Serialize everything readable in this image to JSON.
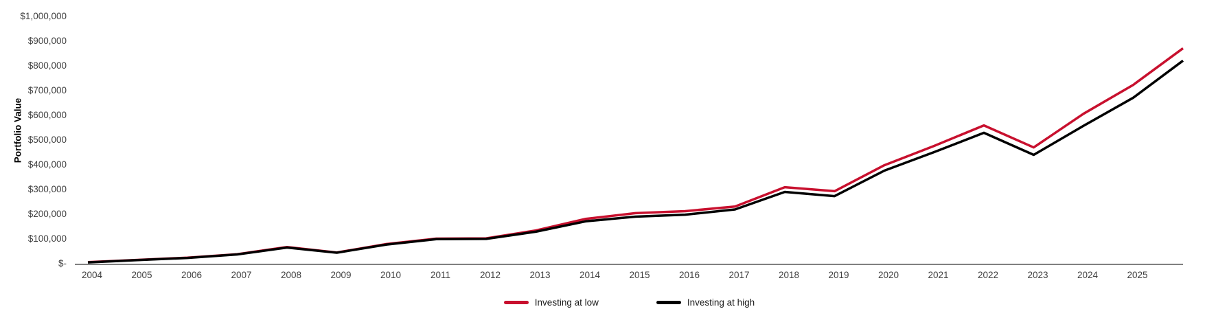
{
  "chart_data": {
    "type": "line",
    "title": "",
    "xlabel": "",
    "ylabel": "Portfolio Value",
    "ylim": [
      0,
      1000000
    ],
    "grid": false,
    "legend_position": "bottom",
    "axis_line_color": "#808080",
    "tick_text_color": "#404040",
    "x": [
      2004,
      2005,
      2006,
      2007,
      2008,
      2009,
      2010,
      2011,
      2012,
      2013,
      2014,
      2015,
      2016,
      2017,
      2018,
      2019,
      2020,
      2021,
      2022,
      2023,
      2024,
      2025,
      2026
    ],
    "x_tick_labels": [
      "2004",
      "2005",
      "2006",
      "2007",
      "2008",
      "2009",
      "2010",
      "2011",
      "2012",
      "2013",
      "2014",
      "2015",
      "2016",
      "2017",
      "2018",
      "2019",
      "2020",
      "2021",
      "2022",
      "2023",
      "2024",
      "2025"
    ],
    "y_ticks": [
      {
        "value": 0,
        "label": "$-"
      },
      {
        "value": 100000,
        "label": "$100,000"
      },
      {
        "value": 200000,
        "label": "$200,000"
      },
      {
        "value": 300000,
        "label": "$300,000"
      },
      {
        "value": 400000,
        "label": "$400,000"
      },
      {
        "value": 500000,
        "label": "$500,000"
      },
      {
        "value": 600000,
        "label": "$600,000"
      },
      {
        "value": 700000,
        "label": "$700,000"
      },
      {
        "value": 800000,
        "label": "$800,000"
      },
      {
        "value": 900000,
        "label": "$900,000"
      },
      {
        "value": 1000000,
        "label": "$1,000,000"
      }
    ],
    "series": [
      {
        "name": "Investing at low",
        "color": "#C8102E",
        "values": [
          5000,
          14000,
          23000,
          37000,
          66000,
          44000,
          78000,
          100000,
          101000,
          133000,
          180000,
          203000,
          211000,
          230000,
          308000,
          292000,
          397000,
          475000,
          558000,
          469000,
          605000,
          722000,
          870000
        ]
      },
      {
        "name": "Investing at high",
        "color": "#000000",
        "values": [
          4000,
          13000,
          22000,
          36000,
          64000,
          43000,
          76000,
          98000,
          99000,
          128000,
          170000,
          189000,
          197000,
          218000,
          289000,
          272000,
          375000,
          450000,
          528000,
          439000,
          556000,
          670000,
          820000
        ]
      }
    ]
  }
}
